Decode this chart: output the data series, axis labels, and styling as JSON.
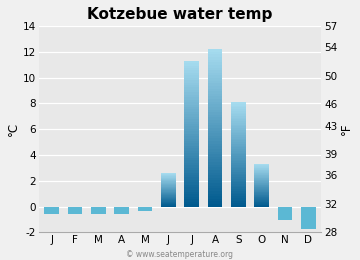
{
  "title": "Kotzebue water temp",
  "months": [
    "J",
    "F",
    "M",
    "A",
    "M",
    "J",
    "J",
    "A",
    "S",
    "O",
    "N",
    "D"
  ],
  "values_c": [
    -0.6,
    -0.6,
    -0.6,
    -0.6,
    -0.3,
    2.6,
    11.3,
    12.2,
    8.1,
    3.3,
    -1.0,
    -1.7
  ],
  "ylim_c": [
    -2,
    14
  ],
  "yticks_c": [
    -2,
    0,
    2,
    4,
    6,
    8,
    10,
    12,
    14
  ],
  "ylim_f": [
    28,
    57
  ],
  "yticks_f": [
    28,
    32,
    36,
    39,
    43,
    46,
    50,
    54,
    57
  ],
  "ylabel_left": "°C",
  "ylabel_right": "°F",
  "bg_color": "#e8e8e8",
  "bar_color_pos_top": "#a8ddf0",
  "bar_color_pos_bot": "#005a8e",
  "bar_color_neg": "#5bb8d4",
  "fig_bg": "#f0f0f0",
  "watermark": "© www.seatemperature.org",
  "title_fontsize": 11,
  "tick_fontsize": 7.5,
  "bar_width": 0.62
}
